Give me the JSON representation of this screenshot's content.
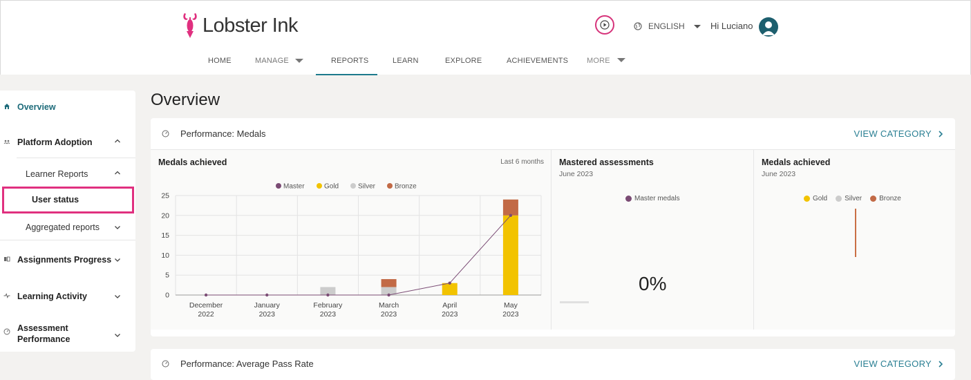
{
  "brand": {
    "name": "Lobster Ink"
  },
  "header": {
    "language": "ENGLISH",
    "greeting": "Hi Luciano"
  },
  "nav": [
    {
      "label": "HOME"
    },
    {
      "label": "MANAGE"
    },
    {
      "label": "REPORTS"
    },
    {
      "label": "LEARN"
    },
    {
      "label": "EXPLORE"
    },
    {
      "label": "ACHIEVEMENTS"
    },
    {
      "label": "MORE"
    }
  ],
  "sidebar": {
    "overview": "Overview",
    "platform_adoption": "Platform Adoption",
    "learner_reports": "Learner Reports",
    "user_status": "User status",
    "aggregated_reports": "Aggregated reports",
    "assignments_progress": "Assignments Progress",
    "learning_activity": "Learning Activity",
    "assessment_performance_1": "Assessment",
    "assessment_performance_2": "Performance"
  },
  "main": {
    "title": "Overview",
    "card1": {
      "title": "Performance: Medals",
      "view": "VIEW CATEGORY",
      "panel1": {
        "title": "Medals achieved",
        "range": "Last 6 months"
      },
      "panel2": {
        "title": "Mastered assessments",
        "date": "June 2023",
        "legend": "Master medals",
        "percent": "0%"
      },
      "panel3": {
        "title": "Medals achieved",
        "date": "June 2023",
        "legend": [
          "Gold",
          "Silver",
          "Bronze"
        ]
      }
    },
    "card2": {
      "title": "Performance: Average Pass Rate",
      "view": "VIEW CATEGORY"
    }
  },
  "colors": {
    "accent": "#1d7a8c",
    "highlight": "#e0307f",
    "master": "#7a4b74",
    "gold": "#f2c300",
    "silver": "#cccccc",
    "bronze": "#c26a46"
  },
  "chart_data": {
    "type": "bar",
    "categories": [
      [
        "December",
        "2022"
      ],
      [
        "January",
        "2023"
      ],
      [
        "February",
        "2023"
      ],
      [
        "March",
        "2023"
      ],
      [
        "April",
        "2023"
      ],
      [
        "May",
        "2023"
      ]
    ],
    "series": [
      {
        "name": "Master",
        "type": "line",
        "values": [
          0,
          0,
          0,
          0,
          3,
          20
        ]
      },
      {
        "name": "Gold",
        "values": [
          0,
          0,
          0,
          0,
          3,
          20
        ]
      },
      {
        "name": "Silver",
        "values": [
          0,
          0,
          2,
          2,
          0,
          0
        ]
      },
      {
        "name": "Bronze",
        "values": [
          0,
          0,
          0,
          2,
          0,
          4
        ]
      }
    ],
    "yticks": [
      0,
      5,
      10,
      15,
      20,
      25
    ],
    "ylim": [
      0,
      25
    ],
    "stacked": true,
    "grid": true,
    "legend": "top-center"
  }
}
